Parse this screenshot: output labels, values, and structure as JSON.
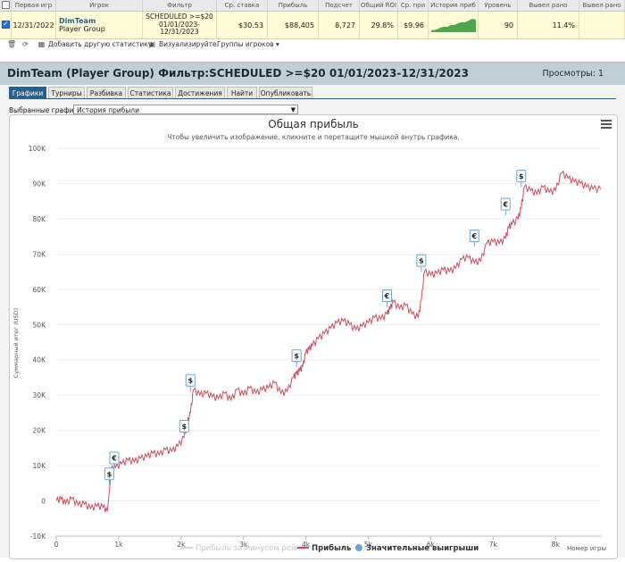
{
  "table": {
    "headers": [
      "Первая игр",
      "Игрок",
      "Фильтр",
      "Ср. ставка",
      "Прибыль",
      "Подсчет",
      "Общий ROI",
      "Ср. при",
      "История приб",
      "Уровень",
      "Вывел рано",
      "Вывел рано"
    ],
    "row": {
      "date": "12/31/2022",
      "player_name": "DimTeam",
      "player_group": "Player Group",
      "filter_line1": "SCHEDULED >=$20",
      "filter_line2": "01/01/2023-",
      "filter_line3": "12/31/2023",
      "avg_stake": "$30.53",
      "profit": "$88,405",
      "count": "8,727",
      "roi": "29.8%",
      "avg_profit": "$9.96",
      "level": "90",
      "cashed_early": "11.4%"
    }
  },
  "toolbar": {
    "add_stats": "Добавить другую статистику",
    "visualize": "Визуализируйте.",
    "player_groups": "Группы игроков"
  },
  "panel": {
    "title": "DimTeam (Player Group) Фильтр:SCHEDULED >=$20 01/01/2023-12/31/2023",
    "views": "Просмотры: 1",
    "tabs": [
      "Графики",
      "Турниры",
      "Разбивка",
      "Статистика",
      "Достижения",
      "Найти",
      "Опубликовать"
    ],
    "selected_label": "Выбранные графики:",
    "selected_value": "История прибыли"
  },
  "colors": {
    "accent": "#2a5f8c",
    "profit_line": "#c9505e",
    "highlight": "#fffbd6",
    "sparkline": "#4ea64e"
  },
  "chart_data": {
    "type": "line",
    "title": "Общая прибыль",
    "subtitle": "Чтобы увеличить изображение, кликните и перетащите мышкой внутрь графика.",
    "xlabel": "Номер игры",
    "ylabel": "Суммарный итог (USD)",
    "xlim": [
      0,
      8727
    ],
    "ylim": [
      -10000,
      100000
    ],
    "x_ticks": [
      "0",
      "1k",
      "2k",
      "3k",
      "4k",
      "5k",
      "6k",
      "7k",
      "8k"
    ],
    "y_ticks": [
      "-10K",
      "0",
      "10K",
      "20K",
      "30K",
      "40K",
      "50K",
      "60K",
      "70K",
      "80K",
      "90K",
      "100K"
    ],
    "legend": [
      "Прибыль за минусом рейка",
      "Прибыль",
      "Значительные выигрыши"
    ],
    "legend_position": "bottom",
    "series": [
      {
        "name": "Прибыль",
        "x": [
          0,
          80,
          150,
          250,
          350,
          450,
          550,
          650,
          750,
          820,
          860,
          880,
          950,
          1050,
          1150,
          1250,
          1350,
          1450,
          1550,
          1650,
          1750,
          1850,
          1950,
          2050,
          2100,
          2150,
          2200,
          2300,
          2400,
          2500,
          2600,
          2700,
          2800,
          2900,
          3000,
          3100,
          3200,
          3300,
          3400,
          3500,
          3600,
          3700,
          3800,
          3850,
          3900,
          3950,
          4000,
          4050,
          4100,
          4200,
          4300,
          4400,
          4500,
          4600,
          4700,
          4800,
          4900,
          5000,
          5100,
          5200,
          5300,
          5350,
          5400,
          5500,
          5600,
          5700,
          5800,
          5850,
          5900,
          6000,
          6100,
          6200,
          6300,
          6400,
          6500,
          6600,
          6700,
          6800,
          6900,
          7000,
          7100,
          7200,
          7250,
          7300,
          7400,
          7450,
          7500,
          7600,
          7700,
          7800,
          7900,
          8000,
          8100,
          8200,
          8300,
          8400,
          8500,
          8600,
          8727
        ],
        "y": [
          0,
          500,
          -800,
          600,
          -1200,
          -900,
          -2200,
          -1500,
          -1800,
          -3000,
          4500,
          9000,
          9500,
          10500,
          11500,
          11000,
          12000,
          12500,
          13500,
          13000,
          14500,
          14000,
          15500,
          18000,
          22000,
          25000,
          31500,
          30000,
          30500,
          29500,
          29000,
          30500,
          28500,
          31500,
          30000,
          32000,
          30500,
          31500,
          32000,
          33500,
          30500,
          31000,
          35000,
          36000,
          37000,
          38000,
          42000,
          43000,
          44000,
          46000,
          47500,
          49000,
          50500,
          51000,
          50000,
          48500,
          49500,
          50500,
          52000,
          51500,
          53000,
          54500,
          56500,
          54500,
          55500,
          53000,
          52000,
          57000,
          65000,
          64000,
          64500,
          65500,
          65000,
          66000,
          68500,
          69000,
          67500,
          68000,
          73000,
          73500,
          73000,
          74500,
          77500,
          78500,
          80000,
          83000,
          89000,
          88000,
          87000,
          89000,
          87500,
          88000,
          93000,
          91500,
          90500,
          90000,
          89000,
          88500,
          88405
        ]
      }
    ],
    "significant_wins": [
      {
        "x": 850,
        "y": 4500,
        "symbol": "$"
      },
      {
        "x": 930,
        "y": 9000,
        "symbol": "€"
      },
      {
        "x": 2050,
        "y": 18000,
        "symbol": "$"
      },
      {
        "x": 2150,
        "y": 31000,
        "symbol": "$"
      },
      {
        "x": 3850,
        "y": 38000,
        "symbol": "$"
      },
      {
        "x": 5300,
        "y": 55000,
        "symbol": "€"
      },
      {
        "x": 5850,
        "y": 65000,
        "symbol": "$"
      },
      {
        "x": 6700,
        "y": 72000,
        "symbol": "€"
      },
      {
        "x": 7200,
        "y": 81000,
        "symbol": "€"
      },
      {
        "x": 7450,
        "y": 89000,
        "symbol": "$"
      }
    ]
  }
}
